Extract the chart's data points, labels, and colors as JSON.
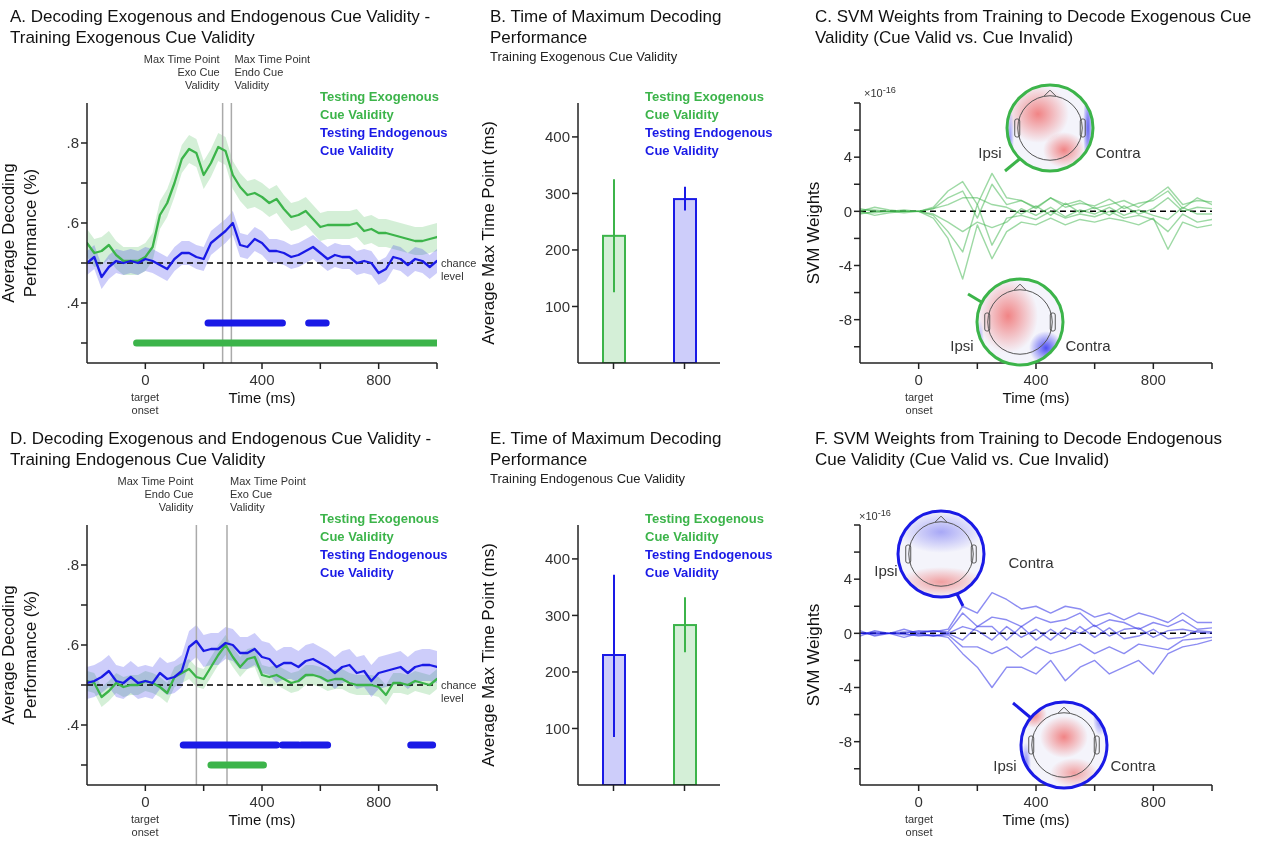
{
  "chart_data": [
    {
      "type": "line",
      "title": "A. Decoding Exogenous and Endogenous Cue Validity - Training Exogenous Cue Validity",
      "xlabel": "Time (ms)",
      "ylabel": "Average Decoding Performance (%)",
      "annotations": [
        "target onset"
      ],
      "legend": "top right",
      "x": [
        -200,
        -175,
        -150,
        -125,
        -100,
        -75,
        -50,
        -25,
        0,
        25,
        50,
        75,
        100,
        125,
        150,
        175,
        200,
        225,
        250,
        275,
        300,
        325,
        350,
        375,
        400,
        425,
        450,
        475,
        500,
        525,
        550,
        575,
        600,
        625,
        650,
        675,
        700,
        725,
        750,
        775,
        800,
        825,
        850,
        875,
        900,
        925,
        950,
        975,
        1000
      ],
      "series": [
        {
          "name": "Testing Exogenous Cue Validity",
          "color": "#3cb44a",
          "values": [
            0.55,
            0.525,
            0.53,
            0.545,
            0.52,
            0.505,
            0.505,
            0.505,
            0.515,
            0.54,
            0.62,
            0.65,
            0.7,
            0.76,
            0.785,
            0.775,
            0.72,
            0.75,
            0.79,
            0.78,
            0.72,
            0.69,
            0.67,
            0.675,
            0.665,
            0.65,
            0.66,
            0.635,
            0.615,
            0.62,
            0.63,
            0.61,
            0.59,
            0.595,
            0.595,
            0.595,
            0.595,
            0.6,
            0.58,
            0.585,
            0.575,
            0.575,
            0.57,
            0.565,
            0.56,
            0.555,
            0.555,
            0.56,
            0.565
          ],
          "lower": [
            0.515,
            0.49,
            0.495,
            0.51,
            0.485,
            0.47,
            0.47,
            0.47,
            0.48,
            0.505,
            0.585,
            0.615,
            0.665,
            0.725,
            0.75,
            0.74,
            0.685,
            0.715,
            0.755,
            0.745,
            0.685,
            0.655,
            0.635,
            0.64,
            0.63,
            0.615,
            0.625,
            0.6,
            0.58,
            0.585,
            0.595,
            0.575,
            0.555,
            0.56,
            0.56,
            0.56,
            0.56,
            0.565,
            0.545,
            0.55,
            0.54,
            0.54,
            0.535,
            0.53,
            0.525,
            0.52,
            0.52,
            0.525,
            0.53
          ],
          "upper": [
            0.585,
            0.56,
            0.565,
            0.58,
            0.555,
            0.54,
            0.54,
            0.54,
            0.55,
            0.575,
            0.655,
            0.685,
            0.735,
            0.795,
            0.82,
            0.81,
            0.755,
            0.785,
            0.825,
            0.815,
            0.755,
            0.725,
            0.705,
            0.71,
            0.7,
            0.685,
            0.695,
            0.67,
            0.65,
            0.655,
            0.665,
            0.645,
            0.625,
            0.63,
            0.63,
            0.63,
            0.63,
            0.635,
            0.615,
            0.62,
            0.61,
            0.61,
            0.605,
            0.6,
            0.595,
            0.59,
            0.59,
            0.595,
            0.6
          ]
        },
        {
          "name": "Testing Endogenous Cue Validity",
          "color": "#1a1ae6",
          "values": [
            0.5,
            0.515,
            0.465,
            0.49,
            0.505,
            0.5,
            0.505,
            0.5,
            0.51,
            0.505,
            0.495,
            0.485,
            0.51,
            0.525,
            0.525,
            0.515,
            0.51,
            0.55,
            0.565,
            0.58,
            0.6,
            0.545,
            0.54,
            0.56,
            0.55,
            0.53,
            0.53,
            0.525,
            0.515,
            0.52,
            0.53,
            0.54,
            0.525,
            0.51,
            0.52,
            0.515,
            0.515,
            0.5,
            0.505,
            0.5,
            0.475,
            0.485,
            0.515,
            0.51,
            0.495,
            0.51,
            0.505,
            0.49,
            0.505
          ],
          "lower": [
            0.47,
            0.485,
            0.435,
            0.46,
            0.475,
            0.47,
            0.475,
            0.47,
            0.48,
            0.475,
            0.465,
            0.455,
            0.48,
            0.495,
            0.495,
            0.485,
            0.48,
            0.52,
            0.535,
            0.55,
            0.57,
            0.515,
            0.51,
            0.53,
            0.52,
            0.5,
            0.5,
            0.495,
            0.485,
            0.49,
            0.5,
            0.51,
            0.495,
            0.48,
            0.49,
            0.485,
            0.485,
            0.47,
            0.475,
            0.47,
            0.445,
            0.455,
            0.485,
            0.48,
            0.465,
            0.48,
            0.475,
            0.46,
            0.475
          ],
          "upper": [
            0.53,
            0.545,
            0.495,
            0.52,
            0.535,
            0.53,
            0.535,
            0.53,
            0.54,
            0.535,
            0.525,
            0.515,
            0.54,
            0.555,
            0.555,
            0.545,
            0.54,
            0.58,
            0.595,
            0.61,
            0.63,
            0.575,
            0.57,
            0.59,
            0.58,
            0.56,
            0.56,
            0.555,
            0.545,
            0.55,
            0.56,
            0.57,
            0.555,
            0.54,
            0.55,
            0.545,
            0.545,
            0.53,
            0.535,
            0.53,
            0.505,
            0.515,
            0.545,
            0.54,
            0.525,
            0.54,
            0.535,
            0.52,
            0.535
          ]
        },
        {
          "color": "#1a1ae6",
          "x": [
            215,
            470,
            515,
            560,
            620
          ],
          "values": [
            0.35,
            0.35,
            null,
            0.35,
            0.35
          ]
        },
        {
          "color": "#3cb44a",
          "x": [
            -30,
            1000
          ],
          "values": [
            0.3,
            0.3
          ]
        }
      ],
      "xlim": [
        -200,
        1000
      ],
      "xticks": [
        0,
        {
          "value": 200,
          "label": null
        },
        400,
        {
          "value": 600,
          "label": null
        },
        800,
        {
          "value": 1000,
          "label": null
        }
      ],
      "ylim": [
        0.25,
        0.9
      ],
      "yticks": [
        {
          "value": 0.3,
          "label": null
        },
        {
          "value": 0.4,
          "label": ".4"
        },
        {
          "value": 0.5,
          "label": null
        },
        {
          "value": 0.6,
          "label": ".6"
        },
        {
          "value": 0.7,
          "label": null
        },
        {
          "value": 0.8,
          "label": ".8"
        }
      ],
      "ref_lines": [
        {
          "axis": "x",
          "value": 265,
          "label": "Max Time Point Exo Cue Validity",
          "color": "#aaaaaa"
        },
        {
          "axis": "x",
          "value": 295,
          "label": "Max Time Point Endo Cue Validity",
          "color": "#aaaaaa"
        },
        {
          "axis": "y",
          "value": 0.5,
          "label": "chance level",
          "color": "#000000",
          "line_style": "dashed"
        }
      ]
    },
    {
      "type": "bar",
      "title": "B. Time of Maximum Decoding Performance",
      "subtitle": "Training Exogenous Cue Validity",
      "ylabel": "Average Max Time Point (ms)",
      "categories": [
        null,
        null
      ],
      "stacked": true,
      "legend": "top right",
      "series": [
        {
          "name": "Testing Exogenous Cue Validity",
          "color": "#3cb44a",
          "values": [
            225,
            null
          ],
          "errors": [
            [
              125,
              325
            ],
            null
          ]
        },
        {
          "name": "Testing Endogenous Cue Validity",
          "color": "#1a1ae6",
          "values": [
            null,
            290
          ],
          "errors": [
            null,
            [
              270,
              312
            ]
          ]
        }
      ],
      "ylim": [
        0,
        460
      ],
      "yticks": [
        100,
        200,
        300,
        400
      ]
    },
    {
      "type": "line",
      "title": "C. SVM Weights from Training to Decode Exogenous Cue Validity (Cue Valid vs. Cue Invalid)",
      "xlabel": "Time (ms)",
      "ylabel": "SVM Weights",
      "annotations": [
        "×10$^{-16}$",
        "Ipsi",
        "Contra",
        "Ipsi",
        "Contra",
        "target onset"
      ],
      "x": [
        -200,
        -150,
        -100,
        -50,
        0,
        50,
        100,
        150,
        200,
        250,
        300,
        350,
        400,
        450,
        500,
        550,
        600,
        650,
        700,
        750,
        800,
        850,
        900,
        950,
        1000
      ],
      "series": [
        {
          "color": "#3cb44a",
          "values": [
            0,
            0.3,
            0.1,
            0,
            0,
            0.3,
            1.5,
            2.2,
            0.5,
            2.8,
            1,
            0.8,
            0.3,
            1,
            0.5,
            0.8,
            0.2,
            0.5,
            0.8,
            0.3,
            1,
            1.8,
            0.5,
            0.8,
            0.7
          ]
        },
        {
          "color": "#3cb44a",
          "values": [
            0,
            -0.3,
            -0.1,
            0,
            0,
            -0.5,
            -2,
            -5,
            -1,
            -3.5,
            -1.5,
            -0.8,
            -1,
            -0.5,
            -1,
            -0.6,
            -0.8,
            -0.5,
            -0.7,
            -1,
            -0.5,
            -2.8,
            -0.8,
            -1.2,
            -1
          ]
        },
        {
          "color": "#3cb44a",
          "values": [
            0.2,
            0,
            0,
            0.1,
            0,
            0.2,
            1,
            1.5,
            -0.5,
            2,
            0.5,
            0.8,
            0.2,
            1,
            0.3,
            0.6,
            0.4,
            0.9,
            0.2,
            0.6,
            0.8,
            1.5,
            0.2,
            1,
            0.5
          ]
        },
        {
          "color": "#3cb44a",
          "values": [
            -0.2,
            0,
            0,
            -0.1,
            0,
            -0.3,
            -1.5,
            -3,
            0.5,
            -2.5,
            -0.5,
            -0.3,
            -0.6,
            0,
            -0.5,
            -0.2,
            -0.4,
            0,
            -0.5,
            -0.3,
            -0.6,
            -1.5,
            -0.2,
            -0.8,
            -0.6
          ]
        },
        {
          "color": "#3cb44a",
          "values": [
            0.1,
            0.1,
            0,
            0,
            0,
            0.2,
            0.5,
            1,
            1,
            0.5,
            0.3,
            -0.2,
            0.4,
            -0.3,
            0.6,
            -0.1,
            0.3,
            -0.3,
            0.4,
            -0.2,
            0.2,
            1,
            0,
            0.3,
            0.2
          ]
        },
        {
          "color": "#3cb44a",
          "values": [
            -0.1,
            -0.1,
            0,
            0,
            0,
            -0.2,
            -0.8,
            -1.5,
            -0.8,
            -1.2,
            -0.8,
            0.2,
            -0.3,
            0.3,
            -0.4,
            0.1,
            -0.2,
            0.3,
            -0.3,
            0.1,
            -0.3,
            -0.6,
            0.3,
            -0.2,
            -0.2
          ]
        }
      ],
      "xlim": [
        -200,
        1000
      ],
      "xticks": [
        0,
        {
          "value": 200,
          "label": null
        },
        400,
        {
          "value": 600,
          "label": null
        },
        800,
        {
          "value": 1000,
          "label": null
        }
      ],
      "ylim": [
        -11.2,
        8
      ],
      "yticks": [
        {
          "value": 8,
          "label": null
        },
        {
          "value": 6,
          "label": null
        },
        4,
        {
          "value": 2,
          "label": null
        },
        0,
        {
          "value": -2,
          "label": null
        },
        -4,
        {
          "value": -6,
          "label": null
        },
        -8,
        {
          "value": -10,
          "label": null
        }
      ],
      "ref_lines": [
        {
          "axis": "y",
          "value": 0,
          "color": "#000000",
          "line_style": "dashed"
        }
      ]
    },
    {
      "type": "line",
      "title": "D. Decoding Exogenous and Endogenous Cue Validity - Training Endogenous Cue Validity",
      "xlabel": "Time (ms)",
      "ylabel": "Average Decoding Performance (%)",
      "annotations": [
        "target onset"
      ],
      "legend": "top right",
      "x": [
        -200,
        -175,
        -150,
        -125,
        -100,
        -75,
        -50,
        -25,
        0,
        25,
        50,
        75,
        100,
        125,
        150,
        175,
        200,
        225,
        250,
        275,
        300,
        325,
        350,
        375,
        400,
        425,
        450,
        475,
        500,
        525,
        550,
        575,
        600,
        625,
        650,
        675,
        700,
        725,
        750,
        775,
        800,
        825,
        850,
        875,
        900,
        925,
        950,
        975,
        1000
      ],
      "series": [
        {
          "name": "Testing Exogenous Cue Validity",
          "color": "#3cb44a",
          "values": [
            0.51,
            0.505,
            0.47,
            0.485,
            0.505,
            0.495,
            0.5,
            0.5,
            0.51,
            0.505,
            0.495,
            0.48,
            0.52,
            0.53,
            0.54,
            0.52,
            0.515,
            0.545,
            0.575,
            0.6,
            0.57,
            0.545,
            0.565,
            0.57,
            0.525,
            0.52,
            0.525,
            0.515,
            0.505,
            0.51,
            0.525,
            0.525,
            0.52,
            0.51,
            0.515,
            0.515,
            0.505,
            0.5,
            0.5,
            0.5,
            0.495,
            0.475,
            0.505,
            0.505,
            0.5,
            0.51,
            0.505,
            0.5,
            0.515
          ],
          "lower": [
            0.485,
            0.48,
            0.445,
            0.46,
            0.48,
            0.47,
            0.475,
            0.475,
            0.485,
            0.48,
            0.47,
            0.455,
            0.495,
            0.505,
            0.515,
            0.495,
            0.49,
            0.52,
            0.55,
            0.575,
            0.545,
            0.52,
            0.54,
            0.545,
            0.5,
            0.495,
            0.5,
            0.49,
            0.48,
            0.485,
            0.5,
            0.5,
            0.495,
            0.485,
            0.49,
            0.49,
            0.48,
            0.475,
            0.475,
            0.475,
            0.47,
            0.45,
            0.48,
            0.48,
            0.475,
            0.485,
            0.48,
            0.475,
            0.49
          ],
          "upper": [
            0.535,
            0.53,
            0.495,
            0.51,
            0.53,
            0.52,
            0.525,
            0.525,
            0.535,
            0.53,
            0.52,
            0.505,
            0.545,
            0.555,
            0.565,
            0.545,
            0.54,
            0.57,
            0.6,
            0.625,
            0.595,
            0.57,
            0.59,
            0.595,
            0.55,
            0.545,
            0.55,
            0.54,
            0.53,
            0.535,
            0.55,
            0.55,
            0.545,
            0.535,
            0.54,
            0.54,
            0.53,
            0.525,
            0.525,
            0.525,
            0.52,
            0.5,
            0.53,
            0.53,
            0.525,
            0.535,
            0.53,
            0.525,
            0.54
          ]
        },
        {
          "name": "Testing Endogenous Cue Validity",
          "color": "#1a1ae6",
          "values": [
            0.505,
            0.51,
            0.52,
            0.535,
            0.51,
            0.505,
            0.52,
            0.505,
            0.51,
            0.505,
            0.53,
            0.515,
            0.52,
            0.535,
            0.595,
            0.61,
            0.585,
            0.59,
            0.59,
            0.605,
            0.6,
            0.58,
            0.58,
            0.59,
            0.57,
            0.565,
            0.545,
            0.555,
            0.555,
            0.545,
            0.56,
            0.565,
            0.555,
            0.545,
            0.53,
            0.545,
            0.55,
            0.53,
            0.535,
            0.51,
            0.53,
            0.535,
            0.54,
            0.545,
            0.53,
            0.545,
            0.55,
            0.55,
            0.545
          ],
          "lower": [
            0.465,
            0.47,
            0.48,
            0.495,
            0.47,
            0.465,
            0.48,
            0.465,
            0.47,
            0.465,
            0.49,
            0.475,
            0.48,
            0.495,
            0.555,
            0.57,
            0.545,
            0.55,
            0.55,
            0.565,
            0.56,
            0.54,
            0.54,
            0.55,
            0.53,
            0.525,
            0.505,
            0.515,
            0.515,
            0.505,
            0.52,
            0.525,
            0.515,
            0.505,
            0.49,
            0.505,
            0.51,
            0.49,
            0.495,
            0.47,
            0.49,
            0.495,
            0.5,
            0.505,
            0.49,
            0.505,
            0.51,
            0.51,
            0.505
          ],
          "upper": [
            0.545,
            0.55,
            0.56,
            0.575,
            0.55,
            0.545,
            0.56,
            0.545,
            0.55,
            0.545,
            0.57,
            0.555,
            0.56,
            0.575,
            0.635,
            0.65,
            0.625,
            0.63,
            0.63,
            0.645,
            0.64,
            0.62,
            0.62,
            0.63,
            0.61,
            0.605,
            0.585,
            0.595,
            0.595,
            0.585,
            0.6,
            0.605,
            0.595,
            0.585,
            0.57,
            0.585,
            0.59,
            0.57,
            0.575,
            0.55,
            0.57,
            0.575,
            0.58,
            0.585,
            0.57,
            0.585,
            0.59,
            0.59,
            0.585
          ]
        },
        {
          "color": "#1a1ae6",
          "x": [
            130,
            450,
            460,
            470,
            525,
            530,
            535,
            625,
            770,
            910,
            985
          ],
          "values": [
            0.35,
            0.35,
            null,
            0.35,
            0.35,
            null,
            0.35,
            0.35,
            null,
            0.35,
            0.35
          ]
        },
        {
          "color": "#3cb44a",
          "x": [
            225,
            405
          ],
          "values": [
            0.3,
            0.3
          ]
        }
      ],
      "xlim": [
        -200,
        1000
      ],
      "xticks": [
        0,
        {
          "value": 200,
          "label": null
        },
        400,
        {
          "value": 600,
          "label": null
        },
        800,
        {
          "value": 1000,
          "label": null
        }
      ],
      "ylim": [
        0.25,
        0.9
      ],
      "yticks": [
        {
          "value": 0.3,
          "label": null
        },
        {
          "value": 0.4,
          "label": ".4"
        },
        {
          "value": 0.5,
          "label": null
        },
        {
          "value": 0.6,
          "label": ".6"
        },
        {
          "value": 0.7,
          "label": null
        },
        {
          "value": 0.8,
          "label": ".8"
        }
      ],
      "ref_lines": [
        {
          "axis": "x",
          "value": 175,
          "label": "Max Time Point Endo Cue Validity",
          "color": "#aaaaaa"
        },
        {
          "axis": "x",
          "value": 280,
          "label": "Max Time Point Exo Cue Validity",
          "color": "#aaaaaa"
        },
        {
          "axis": "y",
          "value": 0.5,
          "label": "chance level",
          "color": "#000000",
          "line_style": "dashed"
        }
      ]
    },
    {
      "type": "bar",
      "title": "E. Time of Maximum Decoding Performance",
      "subtitle": "Training Endogenous Cue Validity",
      "ylabel": "Average Max Time Point (ms)",
      "categories": [
        null,
        null
      ],
      "stacked": true,
      "legend": "top right",
      "series": [
        {
          "name": "Testing Exogenous Cue Validity",
          "color": "#3cb44a",
          "values": [
            null,
            283
          ],
          "errors": [
            null,
            [
              235,
              332
            ]
          ]
        },
        {
          "name": "Testing Endogenous Cue Validity",
          "color": "#1a1ae6",
          "values": [
            230,
            null
          ],
          "errors": [
            [
              85,
              372
            ],
            null
          ]
        }
      ],
      "ylim": [
        0,
        460
      ],
      "yticks": [
        100,
        200,
        300,
        400
      ]
    },
    {
      "type": "line",
      "title": "F. SVM Weights from Training to Decode Endogenous Cue Validity (Cue Valid vs. Cue Invalid)",
      "xlabel": "Time (ms)",
      "ylabel": "SVM Weights",
      "annotations": [
        "×10$^{-16}$",
        "Ipsi",
        "Contra",
        "Ipsi",
        "Contra",
        "target onset"
      ],
      "x": [
        -200,
        -150,
        -100,
        -50,
        0,
        50,
        100,
        150,
        200,
        250,
        300,
        350,
        400,
        450,
        500,
        550,
        600,
        650,
        700,
        750,
        800,
        850,
        900,
        950,
        1000
      ],
      "series": [
        {
          "color": "#1a1ae6",
          "values": [
            0,
            0,
            0,
            0,
            0.2,
            0.1,
            0.3,
            2,
            1.5,
            3,
            2.5,
            1.8,
            2,
            1.5,
            2,
            1.8,
            1.2,
            1.5,
            1,
            1.5,
            1.2,
            0.8,
            1.5,
            0.8,
            0.8
          ]
        },
        {
          "color": "#1a1ae6",
          "values": [
            0,
            0,
            0,
            0,
            -0.2,
            -0.1,
            -0.3,
            -1.5,
            -2.5,
            -4,
            -2.5,
            -2.5,
            -3,
            -2,
            -3.5,
            -2.5,
            -2,
            -3,
            -2.5,
            -2,
            -3,
            -1.5,
            -1,
            -0.8,
            -0.5
          ]
        },
        {
          "color": "#1a1ae6",
          "values": [
            0.2,
            -0.2,
            0,
            0.3,
            0,
            0.2,
            0.1,
            1.5,
            0.5,
            1.2,
            1,
            0.5,
            1.2,
            0.8,
            1,
            1.5,
            0.5,
            1,
            0.8,
            0.3,
            0.8,
            0.5,
            1,
            0.3,
            0.4
          ]
        },
        {
          "color": "#1a1ae6",
          "values": [
            -0.2,
            0.2,
            0,
            -0.3,
            0,
            -0.2,
            -0.1,
            -1,
            -1,
            -1.5,
            -1,
            -1.8,
            -1,
            -1.5,
            -1.2,
            -0.8,
            -1.5,
            -1,
            -1.5,
            -0.8,
            -1,
            -1.2,
            -0.5,
            -0.4,
            -0.3
          ]
        },
        {
          "color": "#1a1ae6",
          "values": [
            0,
            0.1,
            0,
            0.1,
            0.1,
            0.2,
            0,
            0.5,
            0.2,
            -0.5,
            0.5,
            -0.3,
            0.3,
            -0.5,
            0.4,
            0,
            0.6,
            -0.2,
            0.3,
            0.4,
            -0.3,
            0.2,
            0.3,
            0.1,
            0
          ]
        },
        {
          "color": "#1a1ae6",
          "values": [
            0,
            -0.1,
            0,
            -0.1,
            -0.1,
            -0.2,
            0,
            -0.5,
            0.5,
            0.5,
            -0.5,
            0.5,
            -0.5,
            0.3,
            -0.4,
            0.5,
            -0.3,
            0.4,
            -0.4,
            -0.2,
            0.3,
            -0.4,
            -0.3,
            0.2,
            0.1
          ]
        }
      ],
      "xlim": [
        -200,
        1000
      ],
      "xticks": [
        0,
        {
          "value": 200,
          "label": null
        },
        400,
        {
          "value": 600,
          "label": null
        },
        800,
        {
          "value": 1000,
          "label": null
        }
      ],
      "ylim": [
        -11.2,
        8
      ],
      "yticks": [
        {
          "value": 8,
          "label": null
        },
        {
          "value": 6,
          "label": null
        },
        4,
        {
          "value": 2,
          "label": null
        },
        0,
        {
          "value": -2,
          "label": null
        },
        -4,
        {
          "value": -6,
          "label": null
        },
        -8,
        {
          "value": -10,
          "label": null
        }
      ],
      "ref_lines": [
        {
          "axis": "y",
          "value": 0,
          "color": "#000000",
          "line_style": "dashed"
        }
      ]
    }
  ]
}
